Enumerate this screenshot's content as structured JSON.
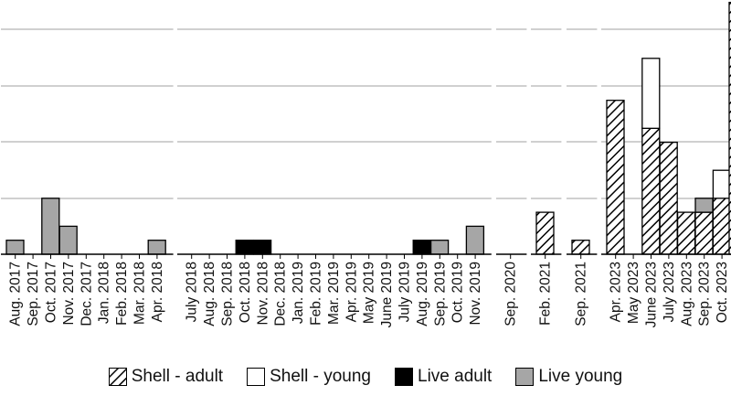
{
  "chart_data": {
    "type": "bar",
    "stacked": true,
    "grid": true,
    "legend_position": "bottom",
    "series_styles": {
      "Shell - adult": {
        "fill": "#ffffff",
        "pattern": "diagonal-hatch",
        "color": "#000000"
      },
      "Shell - young": {
        "fill": "#ffffff",
        "color": "#000000"
      },
      "Live adult": {
        "fill": "#000000",
        "color": "#000000"
      },
      "Live young": {
        "fill": "#a6a6a6",
        "color": "#000000"
      }
    },
    "series_names": [
      "Shell - adult",
      "Shell - young",
      "Live adult",
      "Live young"
    ],
    "panels": [
      {
        "categories": [
          "Aug. 2017",
          "Sep. 2017",
          "Oct. 2017",
          "Nov. 2017",
          "Dec. 2017",
          "Jan. 2018",
          "Feb. 2018",
          "Mar. 2018",
          "Apr. 2018"
        ],
        "series": [
          {
            "name": "Shell - adult",
            "values": [
              0,
              0,
              0,
              0,
              0,
              0,
              0,
              0,
              0
            ]
          },
          {
            "name": "Shell - young",
            "values": [
              0,
              0,
              0,
              0,
              0,
              0,
              0,
              0,
              0
            ]
          },
          {
            "name": "Live adult",
            "values": [
              0,
              0,
              0,
              0,
              0,
              0,
              0,
              0,
              0
            ]
          },
          {
            "name": "Live young",
            "values": [
              1,
              0,
              4,
              2,
              0,
              0,
              0,
              0,
              1
            ]
          }
        ]
      },
      {
        "categories": [
          "July 2018",
          "Aug. 2018",
          "Sep. 2018",
          "Oct. 2018",
          "Nov. 2018",
          "Dec. 2018",
          "Jan. 2019",
          "Feb. 2019",
          "Mar. 2019",
          "Apr. 2019",
          "May 2019",
          "June 2019",
          "July 2019",
          "Aug. 2019",
          "Sep. 2019",
          "Oct. 2019",
          "Nov. 2019"
        ],
        "series": [
          {
            "name": "Shell - adult",
            "values": [
              0,
              0,
              0,
              0,
              0,
              0,
              0,
              0,
              0,
              0,
              0,
              0,
              0,
              0,
              0,
              0,
              0
            ]
          },
          {
            "name": "Shell - young",
            "values": [
              0,
              0,
              0,
              0,
              0,
              0,
              0,
              0,
              0,
              0,
              0,
              0,
              0,
              0,
              0,
              0,
              0
            ]
          },
          {
            "name": "Live adult",
            "values": [
              0,
              0,
              0,
              1,
              1,
              0,
              0,
              0,
              0,
              0,
              0,
              0,
              0,
              1,
              0,
              0,
              0
            ]
          },
          {
            "name": "Live young",
            "values": [
              0,
              0,
              0,
              0,
              0,
              0,
              0,
              0,
              0,
              0,
              0,
              0,
              0,
              0,
              1,
              0,
              2
            ]
          }
        ]
      },
      {
        "categories": [
          "Sep. 2020"
        ],
        "series": [
          {
            "name": "Shell - adult",
            "values": [
              0
            ]
          },
          {
            "name": "Shell - young",
            "values": [
              0
            ]
          },
          {
            "name": "Live adult",
            "values": [
              0
            ]
          },
          {
            "name": "Live young",
            "values": [
              0
            ]
          }
        ]
      },
      {
        "categories": [
          "Feb. 2021"
        ],
        "series": [
          {
            "name": "Shell - adult",
            "values": [
              3
            ]
          },
          {
            "name": "Shell - young",
            "values": [
              0
            ]
          },
          {
            "name": "Live adult",
            "values": [
              0
            ]
          },
          {
            "name": "Live young",
            "values": [
              0
            ]
          }
        ]
      },
      {
        "categories": [
          "Sep. 2021"
        ],
        "series": [
          {
            "name": "Shell - adult",
            "values": [
              1
            ]
          },
          {
            "name": "Shell - young",
            "values": [
              0
            ]
          },
          {
            "name": "Live adult",
            "values": [
              0
            ]
          },
          {
            "name": "Live young",
            "values": [
              0
            ]
          }
        ]
      },
      {
        "categories": [
          "Apr. 2023",
          "May 2023",
          "June 2023",
          "July 2023",
          "Aug. 2023",
          "Sep. 2023",
          "Oct. 2023"
        ],
        "series": [
          {
            "name": "Shell - adult",
            "values": [
              11,
              0,
              9,
              8,
              3,
              3,
              4
            ]
          },
          {
            "name": "Shell - young",
            "values": [
              0,
              0,
              5,
              0,
              0,
              0,
              2
            ]
          },
          {
            "name": "Live adult",
            "values": [
              0,
              0,
              0,
              0,
              0,
              0,
              0
            ]
          },
          {
            "name": "Live young",
            "values": [
              0,
              0,
              0,
              0,
              0,
              1,
              0
            ]
          }
        ]
      }
    ],
    "overflow_partial_category": {
      "series": "Shell - adult",
      "value": 18
    },
    "ylim": [
      0,
      18
    ]
  }
}
